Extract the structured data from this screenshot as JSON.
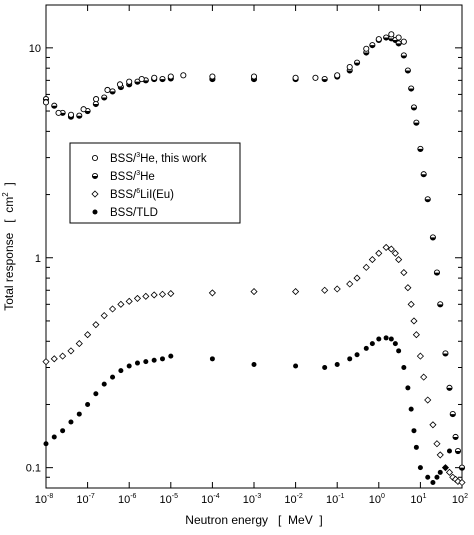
{
  "chart_data": {
    "type": "scatter",
    "title": "",
    "xlabel": "Neutron energy   [  MeV  ]",
    "ylabel": "Total response   [  cm2  ]",
    "xscale": "log",
    "yscale": "log",
    "xlim": [
      1e-08,
      100
    ],
    "ylim": [
      0.08,
      16
    ],
    "x_ticks": [
      {
        "base": "10",
        "exp": "-8"
      },
      {
        "base": "10",
        "exp": "-7"
      },
      {
        "base": "10",
        "exp": "-6"
      },
      {
        "base": "10",
        "exp": "-5"
      },
      {
        "base": "10",
        "exp": "-4"
      },
      {
        "base": "10",
        "exp": "-3"
      },
      {
        "base": "10",
        "exp": "-2"
      },
      {
        "base": "10",
        "exp": "-1"
      },
      {
        "base": "10",
        "exp": "0"
      },
      {
        "base": "10",
        "exp": "1"
      },
      {
        "base": "10",
        "exp": "2"
      }
    ],
    "y_ticks": [
      "0.1",
      "1",
      "10"
    ],
    "grid": false,
    "legend_position": "center-left",
    "series": [
      {
        "name": "BSS/3He, this work",
        "legend_parts": [
          "BSS/",
          "3",
          "He, this work"
        ],
        "marker": "open-circle",
        "x": [
          1e-08,
          2e-08,
          4e-08,
          8e-08,
          1.6e-07,
          3e-07,
          6e-07,
          1e-06,
          2e-06,
          4e-06,
          1e-05,
          2e-05,
          0.0001,
          0.001,
          0.01,
          0.03,
          0.1,
          0.2,
          0.5,
          1,
          2,
          3,
          4
        ],
        "y": [
          5.5,
          4.9,
          4.8,
          5.1,
          5.7,
          6.3,
          6.7,
          6.9,
          7.1,
          7.2,
          7.3,
          7.4,
          7.3,
          7.3,
          7.2,
          7.2,
          7.4,
          8.1,
          9.9,
          11.0,
          11.6,
          11.2,
          10.7
        ]
      },
      {
        "name": "BSS/3He",
        "legend_parts": [
          "BSS/",
          "3",
          "He"
        ],
        "marker": "half-filled-circle",
        "x": [
          1e-08,
          1.58e-08,
          2.51e-08,
          3.98e-08,
          6.31e-08,
          1e-07,
          1.58e-07,
          2.51e-07,
          3.98e-07,
          6.31e-07,
          1e-06,
          1.58e-06,
          2.51e-06,
          3.98e-06,
          6.31e-06,
          1e-05,
          0.0001,
          0.001,
          0.01,
          0.05,
          0.1,
          0.2,
          0.3,
          0.5,
          0.7,
          1,
          1.5,
          2,
          2.5,
          3,
          4,
          5,
          6,
          7,
          8,
          10,
          12,
          15,
          20,
          25,
          30,
          40,
          50,
          60,
          70,
          80,
          100
        ],
        "y": [
          5.7,
          5.3,
          4.9,
          4.7,
          4.75,
          5.0,
          5.4,
          5.8,
          6.2,
          6.5,
          6.7,
          6.9,
          7.0,
          7.1,
          7.1,
          7.15,
          7.1,
          7.1,
          7.1,
          7.1,
          7.3,
          7.8,
          8.5,
          9.5,
          10.3,
          10.9,
          11.2,
          11.1,
          10.9,
          10.5,
          9.2,
          7.8,
          6.4,
          5.2,
          4.4,
          3.3,
          2.5,
          1.9,
          1.25,
          0.85,
          0.6,
          0.35,
          0.24,
          0.18,
          0.14,
          0.12,
          0.1
        ]
      },
      {
        "name": "BSS/6LiI(Eu)",
        "legend_parts": [
          "BSS/",
          "6",
          "LiI(Eu)"
        ],
        "marker": "open-diamond",
        "x": [
          1e-08,
          1.58e-08,
          2.51e-08,
          3.98e-08,
          6.31e-08,
          1e-07,
          1.58e-07,
          2.51e-07,
          3.98e-07,
          6.31e-07,
          1e-06,
          1.58e-06,
          2.51e-06,
          3.98e-06,
          6.31e-06,
          1e-05,
          0.0001,
          0.001,
          0.01,
          0.05,
          0.1,
          0.2,
          0.3,
          0.5,
          0.7,
          1,
          1.5,
          2,
          2.5,
          3,
          4,
          5,
          6,
          7,
          8,
          10,
          12,
          15,
          20,
          25,
          30,
          40,
          50,
          60,
          70,
          80,
          100
        ],
        "y": [
          0.32,
          0.33,
          0.34,
          0.36,
          0.39,
          0.43,
          0.48,
          0.53,
          0.57,
          0.6,
          0.62,
          0.64,
          0.655,
          0.665,
          0.67,
          0.675,
          0.68,
          0.69,
          0.69,
          0.7,
          0.71,
          0.75,
          0.8,
          0.9,
          0.98,
          1.05,
          1.12,
          1.1,
          1.05,
          0.98,
          0.85,
          0.72,
          0.6,
          0.5,
          0.43,
          0.34,
          0.27,
          0.21,
          0.16,
          0.13,
          0.115,
          0.1,
          0.095,
          0.09,
          0.088,
          0.086,
          0.085
        ]
      },
      {
        "name": "BSS/TLD",
        "legend_parts": [
          "BSS/TLD"
        ],
        "marker": "filled-circle",
        "x": [
          1e-08,
          1.58e-08,
          2.51e-08,
          3.98e-08,
          6.31e-08,
          1e-07,
          1.58e-07,
          2.51e-07,
          3.98e-07,
          6.31e-07,
          1e-06,
          1.58e-06,
          2.51e-06,
          3.98e-06,
          6.31e-06,
          1e-05,
          0.0001,
          0.001,
          0.01,
          0.05,
          0.1,
          0.2,
          0.3,
          0.5,
          0.7,
          1,
          1.5,
          2,
          2.5,
          3,
          4,
          5,
          6,
          7,
          8,
          10,
          15,
          20,
          25,
          30,
          40,
          50
        ],
        "y": [
          0.13,
          0.14,
          0.15,
          0.165,
          0.18,
          0.2,
          0.225,
          0.25,
          0.27,
          0.29,
          0.305,
          0.315,
          0.32,
          0.325,
          0.33,
          0.34,
          0.33,
          0.31,
          0.305,
          0.3,
          0.31,
          0.33,
          0.345,
          0.37,
          0.39,
          0.41,
          0.415,
          0.41,
          0.39,
          0.36,
          0.3,
          0.24,
          0.19,
          0.15,
          0.125,
          0.1,
          0.09,
          0.085,
          0.09,
          0.095,
          0.1,
          0.12
        ]
      }
    ]
  }
}
